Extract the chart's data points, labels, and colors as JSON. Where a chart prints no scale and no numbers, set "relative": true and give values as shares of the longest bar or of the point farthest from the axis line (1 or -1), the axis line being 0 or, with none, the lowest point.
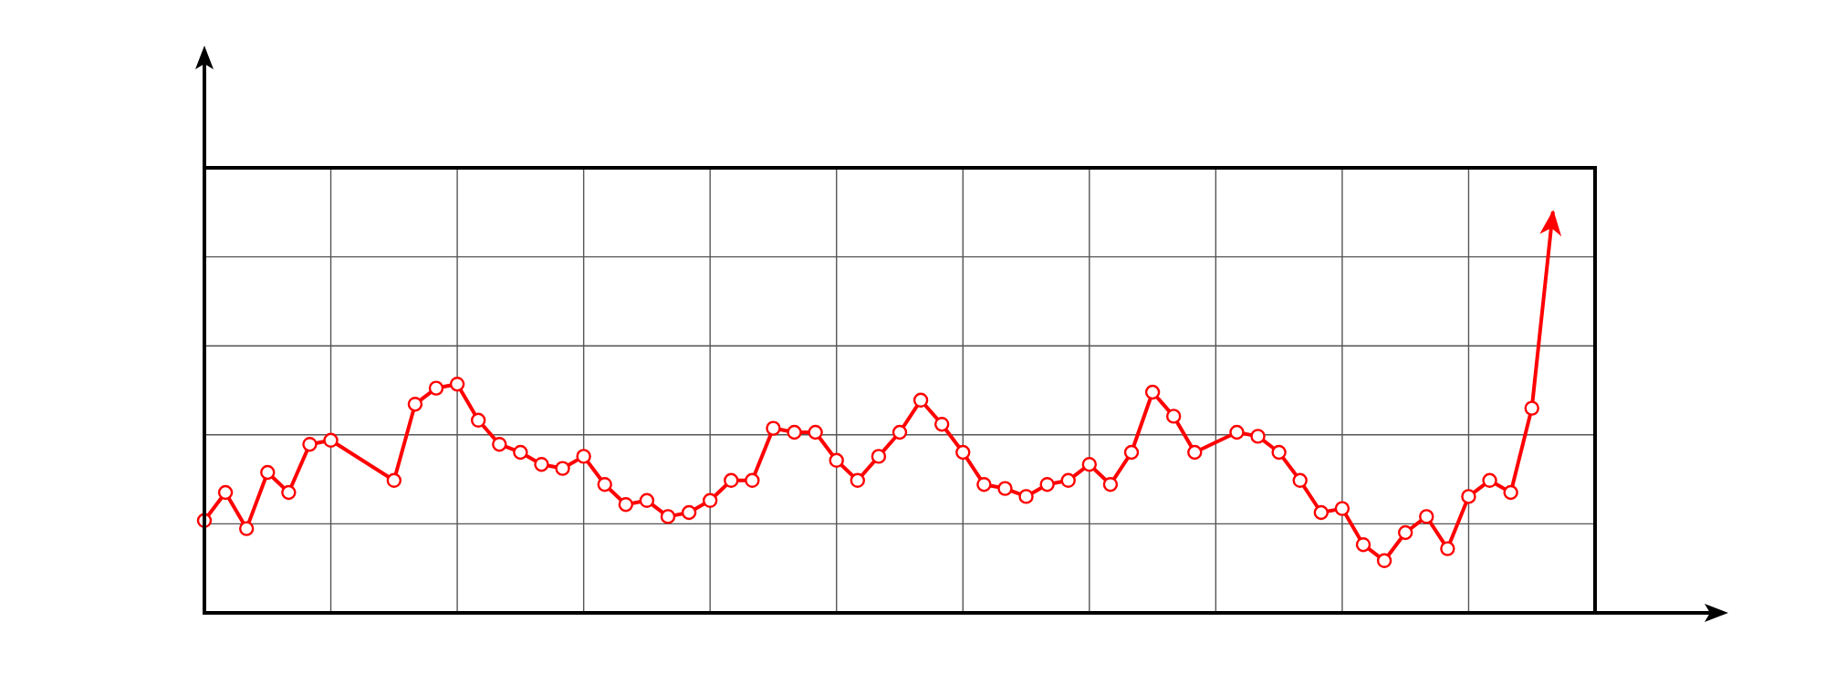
{
  "chart_data": {
    "type": "line",
    "relative": true,
    "grid": true,
    "marker": "circle",
    "line_style": "solid",
    "categories": [
      null,
      null,
      null,
      null,
      null,
      null,
      null,
      null,
      null,
      null,
      null,
      null,
      null,
      null,
      null,
      null,
      null,
      null,
      null,
      null,
      null,
      null,
      null,
      null,
      null,
      null,
      null,
      null,
      null,
      null,
      null,
      null,
      null,
      null,
      null,
      null,
      null,
      null,
      null,
      null,
      null,
      null,
      null,
      null,
      null,
      null,
      null,
      null,
      null,
      null,
      null,
      null,
      null,
      null,
      null,
      null,
      null,
      null,
      null,
      null,
      null,
      null,
      null,
      null,
      null,
      null,
      null
    ],
    "series": [
      {
        "color": "#ff0000",
        "values": [
          0.23,
          0.3,
          0.21,
          0.35,
          0.3,
          0.42,
          0.43,
          null,
          null,
          0.33,
          0.52,
          0.56,
          0.57,
          0.48,
          0.42,
          0.4,
          0.37,
          0.36,
          0.39,
          0.32,
          0.27,
          0.28,
          0.24,
          0.25,
          0.28,
          0.33,
          0.33,
          0.46,
          0.45,
          0.45,
          0.38,
          0.33,
          0.39,
          0.45,
          0.53,
          0.47,
          0.4,
          0.32,
          0.31,
          0.29,
          0.32,
          0.33,
          0.37,
          0.32,
          0.4,
          0.55,
          0.49,
          0.4,
          null,
          0.45,
          0.44,
          0.4,
          0.33,
          0.25,
          0.26,
          0.17,
          0.13,
          0.2,
          0.24,
          0.16,
          0.29,
          0.33,
          0.3,
          0.51,
          1,
          null,
          null
        ]
      }
    ]
  }
}
